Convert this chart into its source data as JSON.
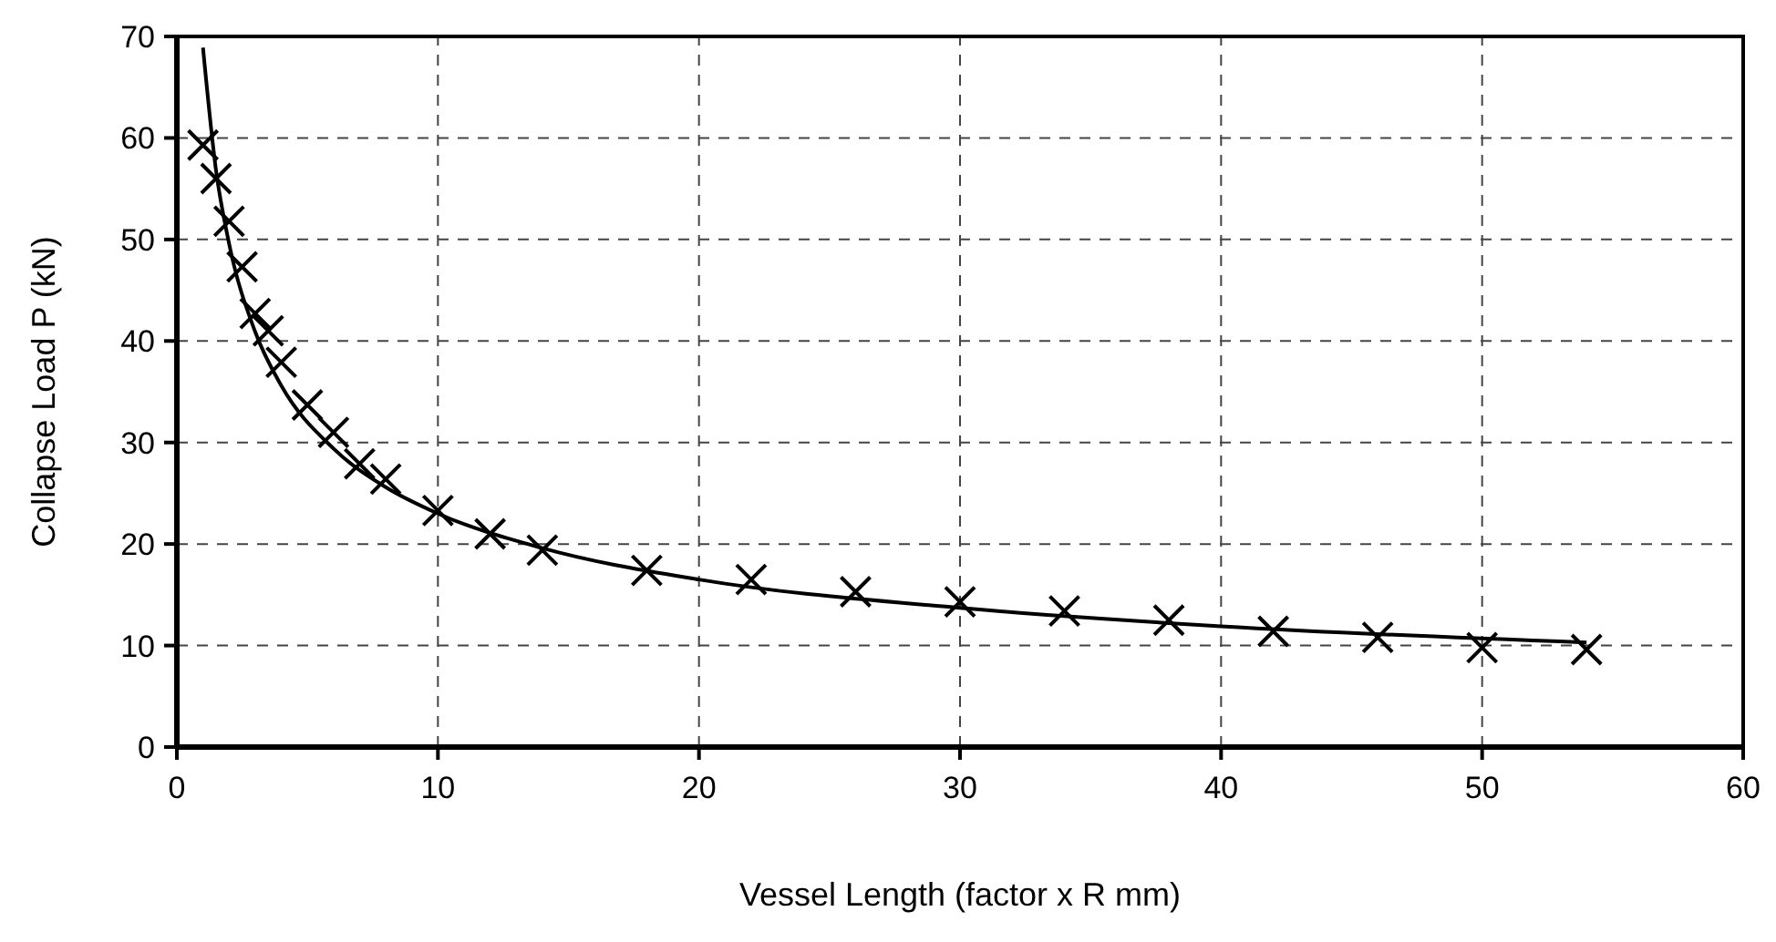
{
  "chart_data": {
    "type": "scatter",
    "xlabel": "Vessel Length (factor x R mm)",
    "ylabel": "Collapse Load P (kN)",
    "xlim": [
      0,
      60
    ],
    "ylim": [
      0,
      70
    ],
    "xticks": [
      0,
      10,
      20,
      30,
      40,
      50,
      60
    ],
    "yticks": [
      0,
      10,
      20,
      30,
      40,
      50,
      60,
      70
    ],
    "grid": true,
    "series": [
      {
        "marker": "cross",
        "color": "#000000",
        "x": [
          1,
          1.5,
          2,
          2.5,
          3,
          3.5,
          4,
          5,
          6,
          7,
          8,
          10,
          12,
          14,
          18,
          22,
          26,
          30,
          34,
          38,
          42,
          46,
          50,
          54
        ],
        "values": [
          59.3,
          56,
          51.8,
          47.3,
          42.7,
          41,
          37.9,
          33.7,
          31,
          27.9,
          26.4,
          23.3,
          21,
          19.4,
          17.4,
          16.5,
          15.3,
          14.3,
          13.4,
          12.5,
          11.4,
          10.8,
          9.8,
          9.6
        ]
      },
      {
        "type": "line",
        "marker": "none",
        "line_style": "solid",
        "color": "#000000",
        "x": [
          1,
          1.5,
          2,
          3,
          4,
          6,
          8,
          10,
          14,
          20,
          30,
          40,
          54
        ],
        "values": [
          68.9,
          56.8,
          49.6,
          40.9,
          35.6,
          29.4,
          25.6,
          23,
          19.6,
          16.5,
          13.7,
          11.9,
          10.3
        ]
      }
    ]
  }
}
